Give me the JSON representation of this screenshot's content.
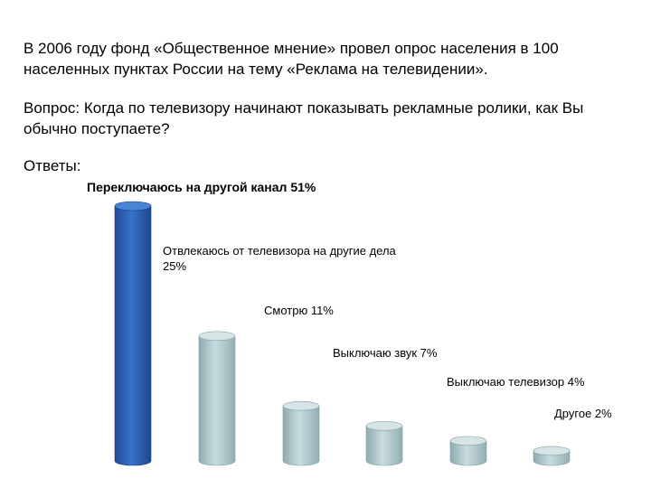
{
  "text": {
    "intro": "В 2006 году фонд «Общественное мнение» провел опрос населения в 100 населенных пунктах России на тему «Реклама на телевидении».",
    "question": "Вопрос: Когда по телевизору начинают показывать рекламные ролики, как Вы обычно поступаете?",
    "answers_label": "Ответы:"
  },
  "colors": {
    "highlight_bar": "#2f63b8",
    "other_bars": "#b9d0d4"
  },
  "chart_data": {
    "type": "bar",
    "title": "",
    "xlabel": "",
    "ylabel": "",
    "ylim": [
      0,
      51
    ],
    "categories": [
      "Переключаюсь на другой канал",
      "Отвлекаюсь от телевизора на другие дела",
      "Смотрю",
      "Выключаю звук",
      "Выключаю телевизор",
      "Другое"
    ],
    "values": [
      51,
      25,
      11,
      7,
      4,
      2
    ],
    "data_labels": [
      [
        "Переключаюсь на другой канал 51%"
      ],
      [
        "Отвлекаюсь от телевизора на другие дела",
        "25%"
      ],
      [
        "Смотрю 11%"
      ],
      [
        "Выключаю звук 7%"
      ],
      [
        "Выключаю телевизор 4%"
      ],
      [
        "Другое 2%"
      ]
    ],
    "grid": false,
    "legend": "none"
  }
}
